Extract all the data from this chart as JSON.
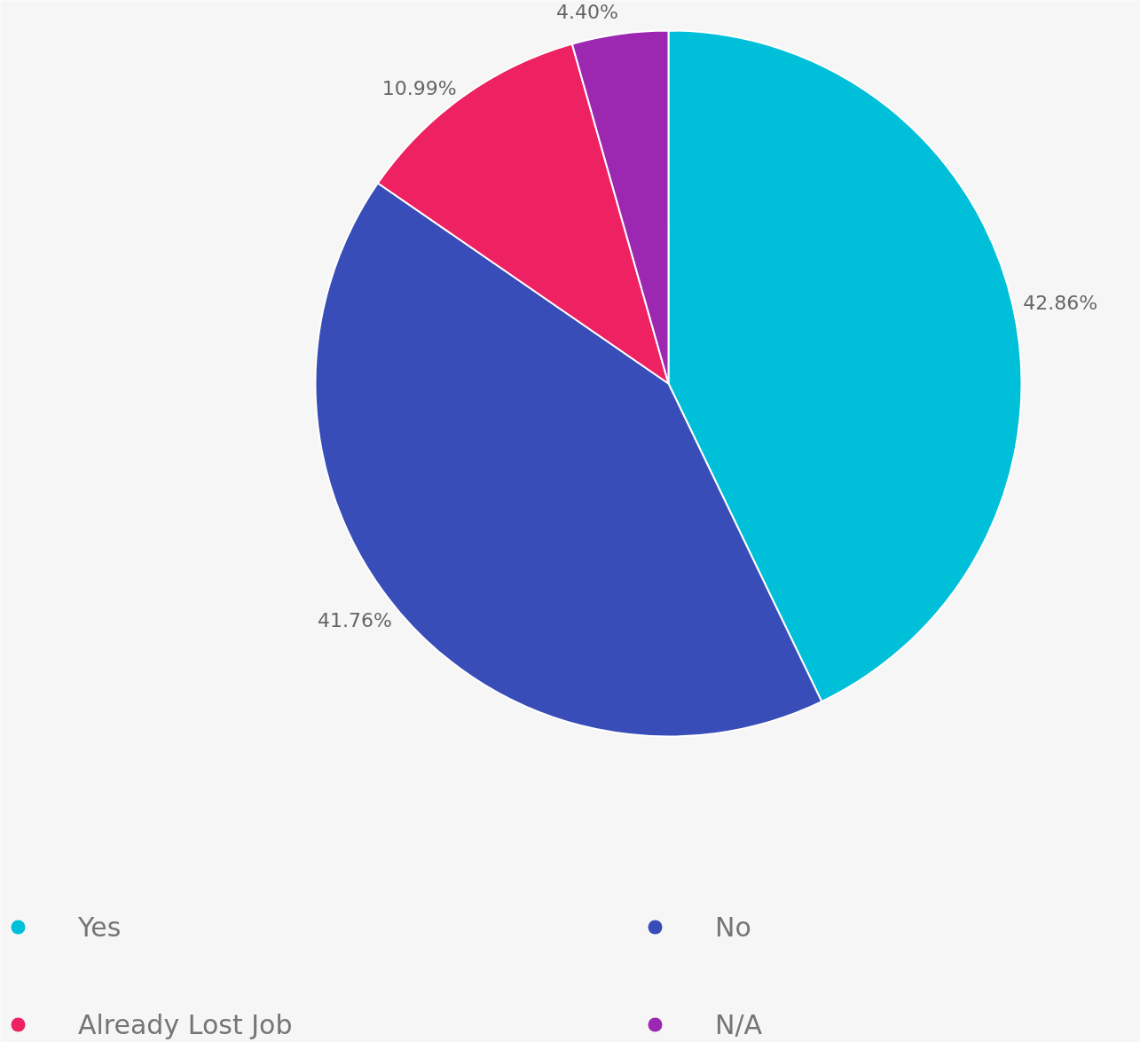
{
  "chart_data": {
    "type": "pie",
    "categories": [
      "Yes",
      "No",
      "Already Lost Job",
      "N/A"
    ],
    "values": [
      42.86,
      41.76,
      10.99,
      4.4
    ],
    "colors": [
      "#00c0d9",
      "#384db8",
      "#ee2163",
      "#9c27b0"
    ],
    "value_labels": [
      "42.86%",
      "41.76%",
      "10.99%",
      "4.40%"
    ],
    "legend": "bottom"
  }
}
